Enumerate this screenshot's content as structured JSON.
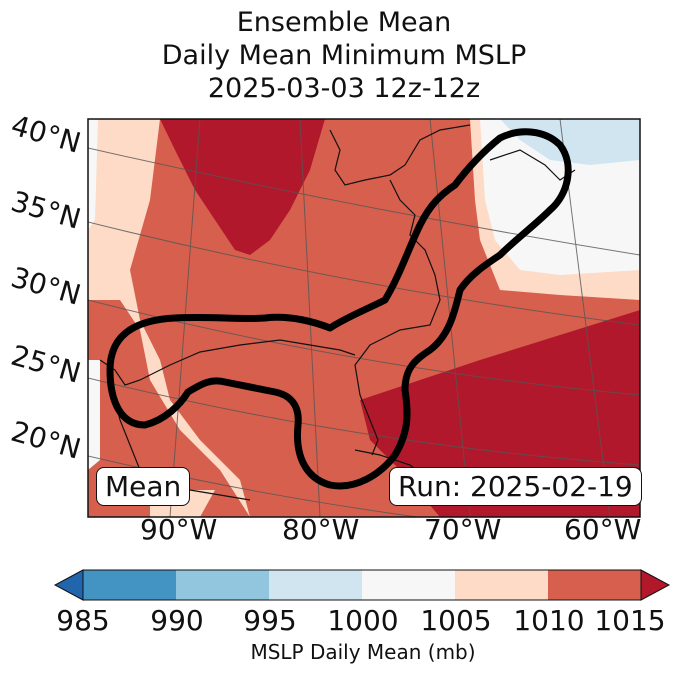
{
  "title": {
    "line1": "Ensemble Mean",
    "line2": "Daily Mean Minimum MSLP",
    "line3": "2025-03-03 12z-12z"
  },
  "lat_labels": [
    "40°N",
    "35°N",
    "30°N",
    "25°N",
    "20°N"
  ],
  "lon_labels": [
    "90°W",
    "80°W",
    "70°W",
    "60°W"
  ],
  "badges": {
    "left": "Mean",
    "right": "Run: 2025-02-19"
  },
  "colorbar": {
    "ticks": [
      "985",
      "990",
      "995",
      "1000",
      "1005",
      "1010",
      "1015"
    ],
    "label": "MSLP Daily Mean (mb)",
    "colors": [
      "#2166ac",
      "#4393c3",
      "#92c5de",
      "#d1e5f0",
      "#f7f7f7",
      "#fddbc7",
      "#d6604d",
      "#b2182b"
    ]
  }
}
